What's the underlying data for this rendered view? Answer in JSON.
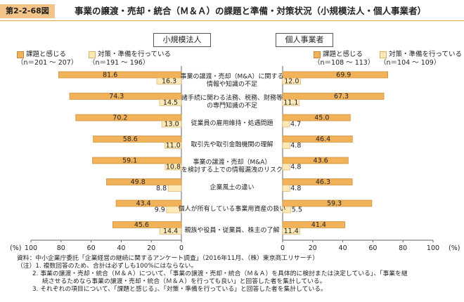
{
  "figure_number": "第2-2-68図",
  "figure_title": "事業の譲渡・売却・統合（Ｍ＆Ａ）の課題と準備・対策状況（小規模法人・個人事業者）",
  "colors": {
    "issue": "#f2b25a",
    "prep": "#fde9b8",
    "accent": "#e3a24f"
  },
  "notes": [
    "資料：中小企業庁委託「企業経営の継続に関するアンケート調査」（2016年11月、（株）東京商工リサーチ）",
    "（注）1. 複数回答のため、合計は必ずしも100%にはならない。",
    "2. 事業の譲渡・売却・統合（Ｍ＆Ａ）について、「事業の譲渡・売却・統合（Ｍ＆Ａ）を具体的に検討または決定している」、「事業を継",
    "続させるためなら事業の譲渡・売却・統合（Ｍ＆Ａ）を行っても良い」と回答した者を集計している。",
    "3. それぞれの項目について、「課題と感じる」、「対策・準備を行っている」と回答した者を集計している。"
  ],
  "chart_data": {
    "type": "bar",
    "orientation": "horizontal",
    "categories": [
      "事業の譲渡・売却（M&A）に関する\n情報や知識の不足",
      "諸手続に関わる法務、税務、財務等\nの専門知識の不足",
      "従業員の雇用維持・処遇問題",
      "取引先や取引金融機関の理解",
      "事業の譲渡・売却（M&A）\nを検討する上での情報漏洩のリスク",
      "企業風土の違い",
      "個人が所有している事業用資産の扱い",
      "親族や役員・従業員、株主の了解"
    ],
    "panels": [
      {
        "title": "小規模法人",
        "direction": "left",
        "xlim": [
          0,
          100
        ],
        "ticks": [
          "100",
          "80",
          "60",
          "40",
          "20",
          "0"
        ],
        "axis_unit_label": "(%)",
        "series": [
          {
            "name": "課題と感じる",
            "n": "（n＝201 ～ 207）",
            "values": [
              81.6,
              74.3,
              70.2,
              58.6,
              59.1,
              49.8,
              43.4,
              45.6
            ]
          },
          {
            "name": "対策・準備を行っている",
            "n": "（n＝191 ～ 196）",
            "values": [
              16.3,
              14.5,
              13.0,
              11.0,
              10.8,
              8.8,
              9.9,
              14.4
            ]
          }
        ]
      },
      {
        "title": "個人事業者",
        "direction": "right",
        "xlim": [
          0,
          100
        ],
        "ticks": [
          "0",
          "20",
          "40",
          "60",
          "80",
          "100"
        ],
        "axis_unit_label": "(%)",
        "series": [
          {
            "name": "課題と感じる",
            "n": "（n＝108 ～ 113）",
            "values": [
              69.9,
              67.3,
              45.0,
              46.4,
              43.6,
              46.3,
              59.3,
              41.4
            ]
          },
          {
            "name": "対策・準備を行っている",
            "n": "（n＝104 ～ 109）",
            "values": [
              12.0,
              11.1,
              4.7,
              4.8,
              4.8,
              4.8,
              5.5,
              11.4
            ]
          }
        ]
      }
    ]
  }
}
